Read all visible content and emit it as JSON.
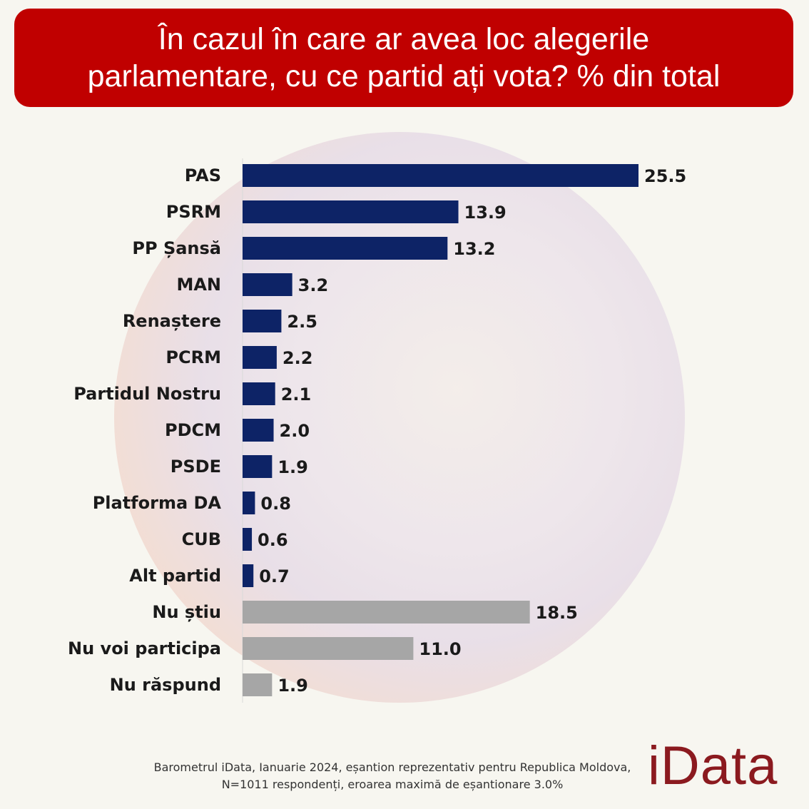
{
  "header": {
    "title_line1": "În cazul în care ar avea loc alegerile",
    "title_line2": "parlamentare, cu ce partid ați vota? % din total"
  },
  "chart_data": {
    "type": "bar",
    "orientation": "horizontal",
    "categories": [
      "PAS",
      "PSRM",
      "PP Șansă",
      "MAN",
      "Renaștere",
      "PCRM",
      "Partidul Nostru",
      "PDCM",
      "PSDE",
      "Platforma DA",
      "CUB",
      "Alt partid",
      "Nu știu",
      "Nu voi participa",
      "Nu răspund"
    ],
    "values": [
      25.5,
      13.9,
      13.2,
      3.2,
      2.5,
      2.2,
      2.1,
      2.0,
      1.9,
      0.8,
      0.6,
      0.7,
      18.5,
      11.0,
      1.9
    ],
    "value_labels": [
      "25.5",
      "13.9",
      "13.2",
      "3.2",
      "2.5",
      "2.2",
      "2.1",
      "2.0",
      "1.9",
      "0.8",
      "0.6",
      "0.7",
      "18.5",
      "11.0",
      "1.9"
    ],
    "bar_colors": [
      "#0d2366",
      "#0d2366",
      "#0d2366",
      "#0d2366",
      "#0d2366",
      "#0d2366",
      "#0d2366",
      "#0d2366",
      "#0d2366",
      "#0d2366",
      "#0d2366",
      "#0d2366",
      "#a6a6a6",
      "#a6a6a6",
      "#a6a6a6"
    ],
    "xlim": [
      0,
      25.5
    ],
    "grid": false,
    "legend": "none"
  },
  "footnote": {
    "line1": "Barometrul iData, Ianuarie 2024, eșantion reprezentativ pentru Republica Moldova,",
    "line2": "N=1011 respondenți, eroarea maximă de eșantionare 3.0%"
  },
  "logo": {
    "text": "iData",
    "color": "#8b1a1f"
  },
  "colors": {
    "title_bg": "#c00000",
    "party_bar": "#0d2366",
    "other_bar": "#a6a6a6"
  }
}
